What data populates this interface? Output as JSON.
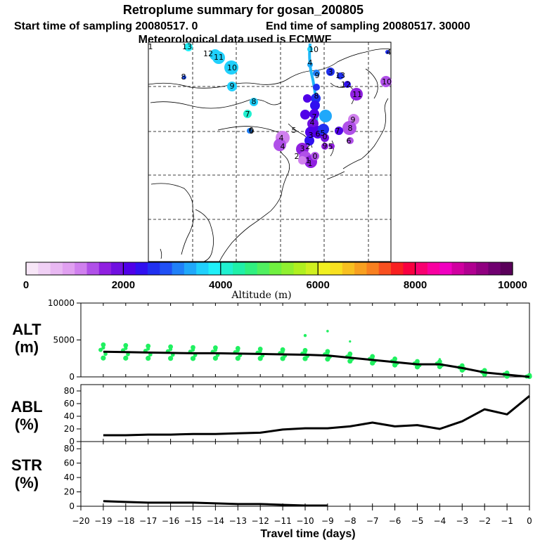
{
  "header": {
    "title": "Retroplume summary for gosan_200805",
    "start": "Start time of sampling 20080517.    0",
    "end": "End time of sampling 20080517. 30000",
    "met": "Meteorological data used is ECMWF"
  },
  "colorbar": {
    "label": "Altitude (m)",
    "ticks": [
      "0",
      "2000",
      "4000",
      "6000",
      "8000",
      "10000"
    ],
    "colors": [
      "#f7e6f7",
      "#f0d0f5",
      "#e8b8f2",
      "#e0a0f0",
      "#d080ee",
      "#b050e8",
      "#9020e0",
      "#7010e0",
      "#5000e8",
      "#3010f0",
      "#2030f0",
      "#2050f5",
      "#2080f8",
      "#20a8fa",
      "#20d0fc",
      "#20f0f8",
      "#20f0d0",
      "#20f0a8",
      "#30f080",
      "#50f060",
      "#70f040",
      "#90f030",
      "#b0f020",
      "#d0f020",
      "#f0f020",
      "#f8e020",
      "#f8c020",
      "#f8a020",
      "#f88020",
      "#f85020",
      "#f82020",
      "#f80040",
      "#f80070",
      "#f800a0",
      "#f000c0",
      "#d000a0",
      "#b00090",
      "#900080",
      "#700070",
      "#5a005a"
    ]
  },
  "map_labels": [
    "10",
    "9",
    "8",
    "7",
    "6",
    "5",
    "4",
    "3",
    "2",
    "1",
    "0",
    "1",
    "4",
    "13",
    "12",
    "11",
    "10",
    "9",
    "8",
    "7",
    "6",
    "5",
    "4",
    "3",
    "13",
    "12",
    "11",
    "10",
    "9",
    "8",
    "7",
    "6",
    "5",
    "4",
    "3",
    "2",
    "1",
    "0",
    "8",
    "4",
    "9",
    "9"
  ],
  "chart_data": [
    {
      "type": "line",
      "panel": "ALT",
      "title": "ALT (m)",
      "ylabel": "(m)",
      "x": [
        -19,
        -18,
        -17,
        -16,
        -15,
        -14,
        -13,
        -12,
        -11,
        -10,
        -9,
        -8,
        -7,
        -6,
        -5,
        -4,
        -3,
        -2,
        -1,
        0
      ],
      "values": [
        3400,
        3350,
        3300,
        3250,
        3200,
        3200,
        3150,
        3100,
        3050,
        3000,
        2900,
        2600,
        2300,
        2000,
        1700,
        1700,
        1200,
        600,
        300,
        0
      ],
      "ylim": [
        0,
        10000
      ],
      "yticks": [
        "0",
        "5000",
        "10000"
      ],
      "scatter_color": "#20f060"
    },
    {
      "type": "line",
      "panel": "ABL",
      "title": "ABL (%)",
      "ylabel": "(%)",
      "x": [
        -19,
        -18,
        -17,
        -16,
        -15,
        -14,
        -13,
        -12,
        -11,
        -10,
        -9,
        -8,
        -7,
        -6,
        -5,
        -4,
        -3,
        -2,
        -1,
        0
      ],
      "values": [
        10,
        10,
        11,
        11,
        12,
        12,
        13,
        14,
        19,
        21,
        21,
        24,
        30,
        24,
        26,
        20,
        32,
        51,
        43,
        72
      ],
      "ylim": [
        0,
        90
      ],
      "yticks": [
        "0",
        "20",
        "40",
        "60",
        "80"
      ]
    },
    {
      "type": "line",
      "panel": "STR",
      "title": "STR (%)",
      "ylabel": "(%)",
      "x": [
        -19,
        -18,
        -17,
        -16,
        -15,
        -14,
        -13,
        -12,
        -11,
        -10,
        -9,
        -8,
        -7,
        -6,
        -5,
        -4,
        -3,
        -2,
        -1,
        0
      ],
      "values": [
        7,
        6,
        5,
        5,
        5,
        4,
        3,
        3,
        2,
        1,
        1,
        0,
        0,
        0,
        0,
        0,
        0,
        0,
        0,
        0
      ],
      "ylim": [
        0,
        90
      ],
      "yticks": [
        "0",
        "20",
        "40",
        "60",
        "80"
      ]
    }
  ],
  "xaxis": {
    "label": "Travel time (days)",
    "ticks": [
      "−20",
      "−19",
      "−18",
      "−17",
      "−16",
      "−15",
      "−14",
      "−13",
      "−12",
      "−11",
      "−10",
      "−9",
      "−8",
      "−7",
      "−6",
      "−5",
      "−4",
      "−3",
      "−2",
      "−1",
      "0"
    ]
  },
  "panels": {
    "alt": [
      "ALT",
      "(m)"
    ],
    "abl": [
      "ABL",
      "(%)"
    ],
    "str": [
      "STR",
      "(%)"
    ]
  }
}
